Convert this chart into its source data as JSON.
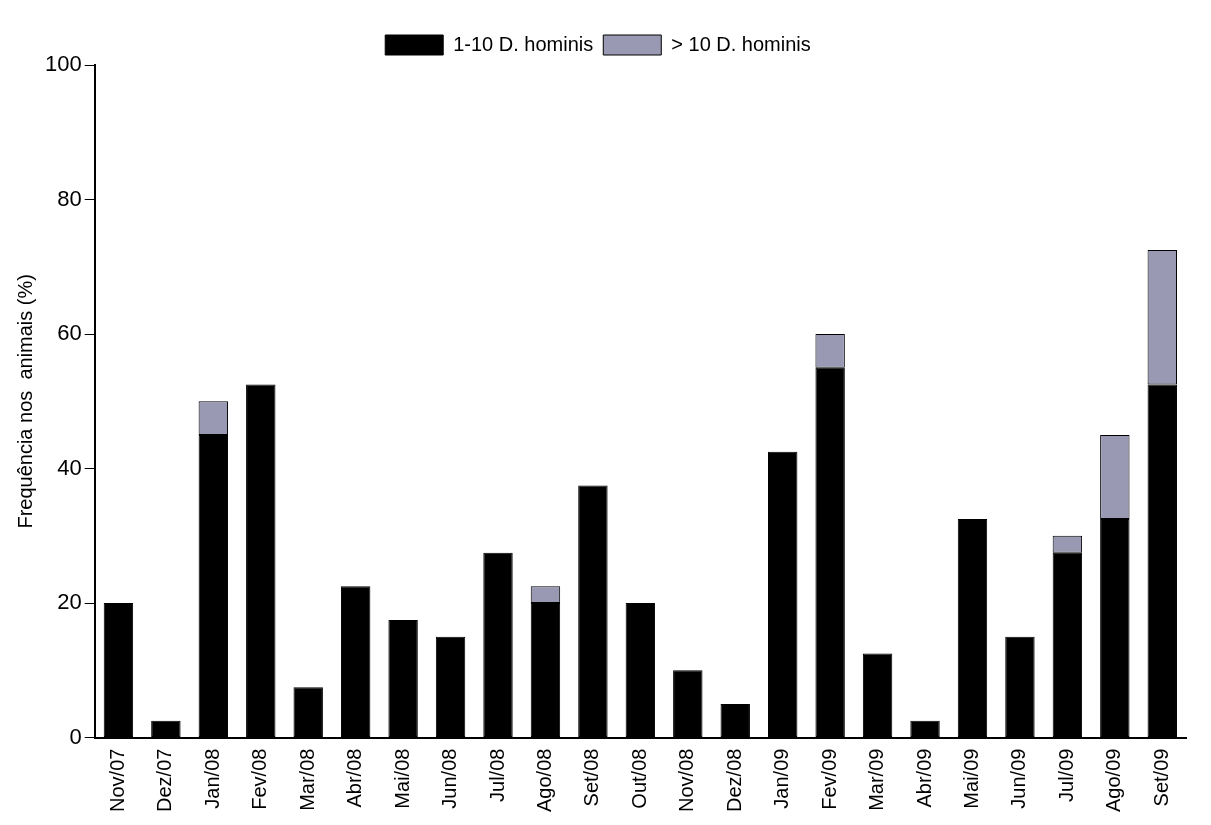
{
  "chart_data": {
    "type": "bar",
    "stacked": true,
    "ylabel": "Frequência nos  animais (%)",
    "categories": [
      "Nov/07",
      "Dez/07",
      "Jan/08",
      "Fev/08",
      "Mar/08",
      "Abr/08",
      "Mai/08",
      "Jun/08",
      "Jul/08",
      "Ago/08",
      "Set/08",
      "Out/08",
      "Nov/08",
      "Dez/08",
      "Jan/09",
      "Fev/09",
      "Mar/09",
      "Abr/09",
      "Mai/09",
      "Jun/09",
      "Jul/09",
      "Ago/09",
      "Set/09"
    ],
    "series": [
      {
        "name": "1-10 D. hominis",
        "color": "#000000",
        "values": [
          20,
          2.5,
          45,
          52.5,
          7.5,
          22.5,
          17.5,
          15,
          27.5,
          20,
          37.5,
          20,
          10,
          5,
          42.5,
          55,
          12.5,
          2.5,
          32.5,
          15,
          27.5,
          32.5,
          52.5
        ]
      },
      {
        "name": "> 10 D. hominis",
        "color": "#9999b3",
        "values": [
          0,
          0,
          5,
          0,
          0,
          0,
          0,
          0,
          0,
          2.5,
          0,
          0,
          0,
          0,
          0,
          5,
          0,
          0,
          0,
          0,
          2.5,
          12.5,
          20
        ]
      }
    ],
    "ylim": [
      0,
      100
    ],
    "yticks": [
      0,
      20,
      40,
      60,
      80,
      100
    ],
    "grid": false,
    "legend": "top"
  }
}
